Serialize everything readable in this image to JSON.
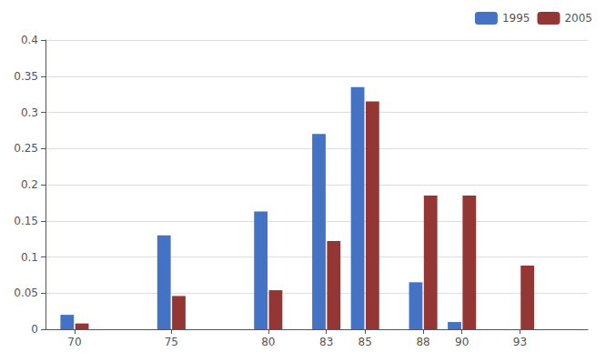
{
  "chart_data": {
    "type": "bar",
    "x": [
      70,
      75,
      80,
      83,
      85,
      88,
      90,
      93
    ],
    "series": [
      {
        "name": "1995",
        "color": "#4472C4",
        "values": [
          0.02,
          0.13,
          0.163,
          0.27,
          0.335,
          0.065,
          0.01,
          0.0
        ]
      },
      {
        "name": "2005",
        "color": "#943634",
        "values": [
          0.008,
          0.046,
          0.054,
          0.122,
          0.315,
          0.185,
          0.185,
          0.088
        ]
      }
    ],
    "xlim": [
      68.5,
      96.5
    ],
    "xticks": [
      70,
      75,
      80,
      83,
      85,
      88,
      90,
      93
    ],
    "ylim": [
      0,
      0.4
    ],
    "yticks": [
      0,
      0.05,
      0.1,
      0.15,
      0.2,
      0.25,
      0.3,
      0.35,
      0.4
    ],
    "grid": true,
    "legend": "upper right"
  }
}
